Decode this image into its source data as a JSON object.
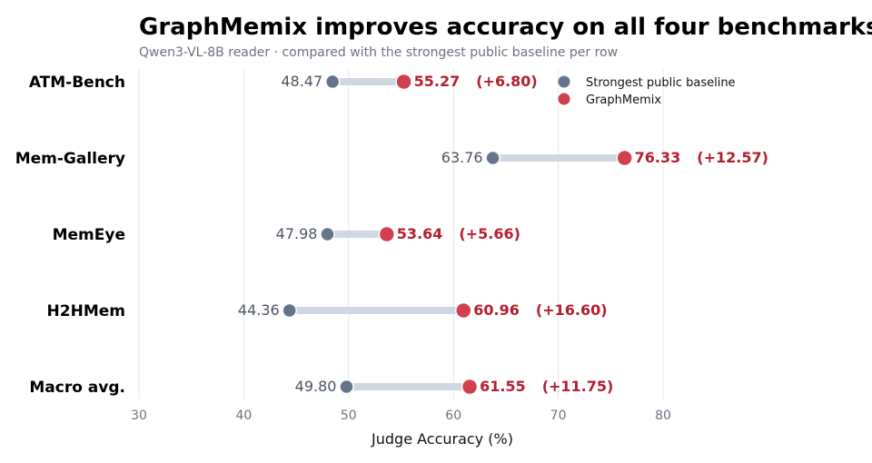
{
  "chart_data": {
    "type": "dumbbell",
    "title": "GraphMemix improves accuracy on all four benchmarks",
    "subtitle": "Qwen3-VL-8B reader · compared with the strongest public baseline per row",
    "xlabel": "Judge Accuracy (%)",
    "xlim": [
      30,
      80
    ],
    "xticks": [
      "30",
      "40",
      "50",
      "60",
      "70",
      "80"
    ],
    "grid": "vertical",
    "legend_position": "top-right",
    "categories": [
      "ATM-Bench",
      "Mem-Gallery",
      "MemEye",
      "H2HMem",
      "Macro avg."
    ],
    "series": [
      {
        "name": "Strongest public baseline",
        "color": "#64748b",
        "values": [
          48.47,
          63.76,
          47.98,
          44.36,
          49.8
        ],
        "labels": [
          "48.47",
          "63.76",
          "47.98",
          "44.36",
          "49.80"
        ]
      },
      {
        "name": "GraphMemix",
        "color": "#d1404f",
        "values": [
          55.27,
          76.33,
          53.64,
          60.96,
          61.55
        ],
        "labels": [
          "55.27",
          "76.33",
          "53.64",
          "60.96",
          "61.55"
        ]
      }
    ],
    "improvements": [
      "(+6.80)",
      "(+12.57)",
      "(+5.66)",
      "(+16.60)",
      "(+11.75)"
    ],
    "connector_color": "#cfd7e3"
  }
}
